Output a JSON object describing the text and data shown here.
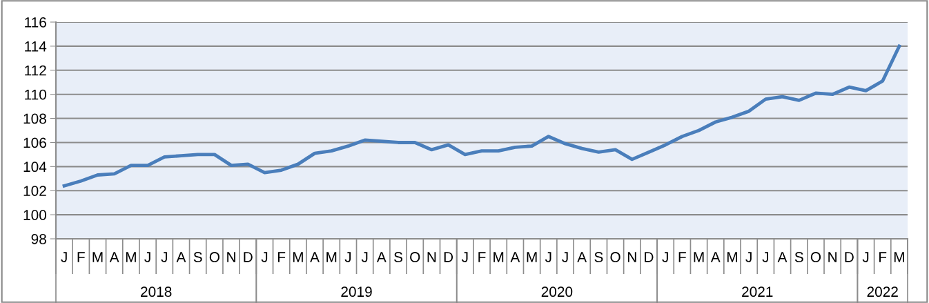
{
  "chart_data": {
    "type": "line",
    "categories": [
      "J",
      "F",
      "M",
      "A",
      "M",
      "J",
      "J",
      "A",
      "S",
      "O",
      "N",
      "D",
      "J",
      "F",
      "M",
      "A",
      "M",
      "J",
      "J",
      "A",
      "S",
      "O",
      "N",
      "D",
      "J",
      "F",
      "M",
      "A",
      "M",
      "J",
      "J",
      "A",
      "S",
      "O",
      "N",
      "D",
      "J",
      "F",
      "M",
      "A",
      "M",
      "J",
      "J",
      "A",
      "S",
      "O",
      "N",
      "D",
      "J",
      "F",
      "M"
    ],
    "series": [
      {
        "color": "#4a7ebb",
        "values": [
          102.4,
          102.8,
          103.3,
          103.4,
          104.1,
          104.1,
          104.8,
          104.9,
          105.0,
          105.0,
          104.1,
          104.2,
          103.5,
          103.7,
          104.2,
          105.1,
          105.3,
          105.7,
          106.2,
          106.1,
          106.0,
          106.0,
          105.4,
          105.8,
          105.0,
          105.3,
          105.3,
          105.6,
          105.7,
          106.5,
          105.9,
          105.5,
          105.2,
          105.4,
          104.6,
          105.2,
          105.8,
          106.5,
          107.0,
          107.7,
          108.1,
          108.6,
          109.6,
          109.8,
          109.5,
          110.1,
          110.0,
          110.6,
          110.3,
          111.1,
          114.0
        ]
      }
    ],
    "annotations": [
      "2018",
      "2019",
      "2020",
      "2021",
      "2022"
    ],
    "ylim": [
      98,
      116
    ],
    "yticks": [
      98,
      100,
      102,
      104,
      106,
      108,
      110,
      112,
      114,
      116
    ],
    "grid": "y",
    "legend": false,
    "marker": "none",
    "line_style": "solid"
  }
}
